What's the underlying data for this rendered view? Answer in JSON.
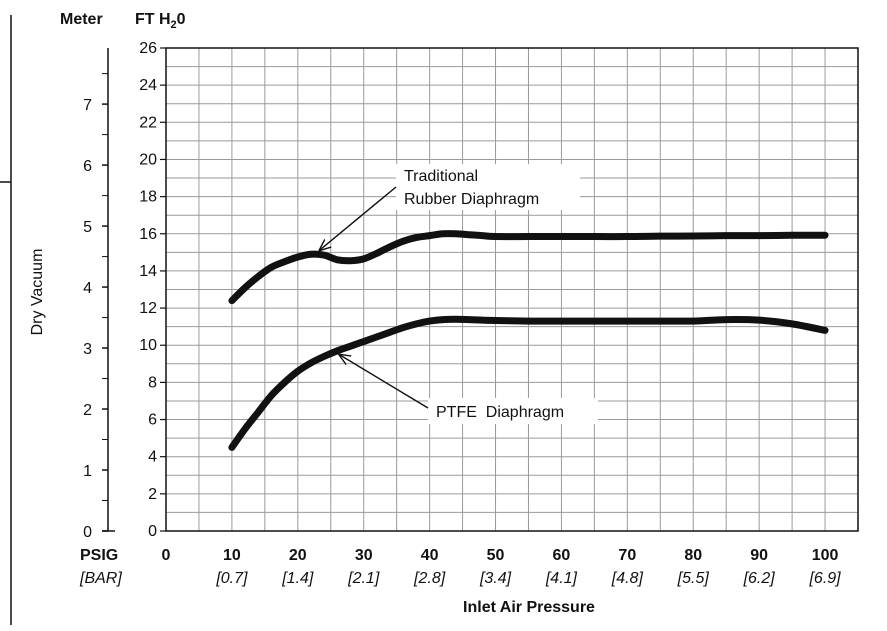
{
  "chart_data": {
    "type": "line",
    "title": "",
    "xlabel": "Inlet Air Pressure",
    "ylabel": "Dry Vacuum",
    "left_axis_unit": "Meter",
    "right_axis_unit_main": "FT H",
    "right_axis_unit_sub": "2",
    "right_axis_unit_end": "0",
    "x_unit_label": "PSIG",
    "x_bar_unit_label": "[BAR]",
    "xlim": [
      0,
      105
    ],
    "ylim": [
      0,
      26
    ],
    "meter_lim": [
      0,
      7.92
    ],
    "x_ticks": [
      {
        "v": 0,
        "label": "0",
        "bar": ""
      },
      {
        "v": 10,
        "label": "10",
        "bar": "[0.7]"
      },
      {
        "v": 20,
        "label": "20",
        "bar": "[1.4]"
      },
      {
        "v": 30,
        "label": "30",
        "bar": "[2.1]"
      },
      {
        "v": 40,
        "label": "40",
        "bar": "[2.8]"
      },
      {
        "v": 50,
        "label": "50",
        "bar": "[3.4]"
      },
      {
        "v": 60,
        "label": "60",
        "bar": "[4.1]"
      },
      {
        "v": 70,
        "label": "70",
        "bar": "[4.8]"
      },
      {
        "v": 80,
        "label": "80",
        "bar": "[5.5]"
      },
      {
        "v": 90,
        "label": "90",
        "bar": "[6.2]"
      },
      {
        "v": 100,
        "label": "100",
        "bar": "[6.9]"
      }
    ],
    "ft_ticks": [
      "0",
      "2",
      "4",
      "6",
      "8",
      "10",
      "12",
      "14",
      "16",
      "18",
      "20",
      "22",
      "24",
      "26"
    ],
    "meter_ticks": [
      "0",
      "1",
      "2",
      "3",
      "4",
      "5",
      "6",
      "7"
    ],
    "grid": true,
    "series": [
      {
        "name": "Traditional Rubber Diaphragm",
        "x": [
          10,
          12,
          14,
          16,
          18,
          20,
          22,
          24,
          26,
          28,
          30,
          32,
          34,
          36,
          38,
          40,
          42,
          44,
          46,
          48,
          50,
          55,
          60,
          65,
          70,
          75,
          80,
          85,
          90,
          95,
          100
        ],
        "y": [
          12.4,
          13.1,
          13.7,
          14.2,
          14.5,
          14.75,
          14.9,
          14.85,
          14.6,
          14.55,
          14.65,
          14.95,
          15.3,
          15.6,
          15.8,
          15.9,
          16.0,
          16.0,
          15.95,
          15.9,
          15.85,
          15.85,
          15.85,
          15.85,
          15.85,
          15.87,
          15.88,
          15.9,
          15.9,
          15.92,
          15.92
        ]
      },
      {
        "name": "PTFE Diaphragm",
        "x": [
          10,
          12,
          14,
          16,
          18,
          20,
          22,
          24,
          26,
          28,
          30,
          32,
          34,
          36,
          38,
          40,
          42,
          44,
          46,
          48,
          50,
          55,
          60,
          65,
          70,
          75,
          80,
          85,
          90,
          95,
          100
        ],
        "y": [
          4.5,
          5.5,
          6.4,
          7.3,
          8.0,
          8.6,
          9.05,
          9.4,
          9.7,
          9.95,
          10.2,
          10.45,
          10.7,
          10.95,
          11.15,
          11.3,
          11.38,
          11.4,
          11.38,
          11.35,
          11.33,
          11.3,
          11.3,
          11.3,
          11.3,
          11.3,
          11.3,
          11.38,
          11.35,
          11.15,
          10.8
        ]
      }
    ],
    "annotations": [
      {
        "lines": [
          "Traditional",
          "Rubber Diaphragm"
        ],
        "target_x": 23,
        "target_y": 14.9
      },
      {
        "lines": [
          "PTFE  Diaphragm"
        ],
        "target_x": 26,
        "target_y": 9.6
      }
    ]
  }
}
